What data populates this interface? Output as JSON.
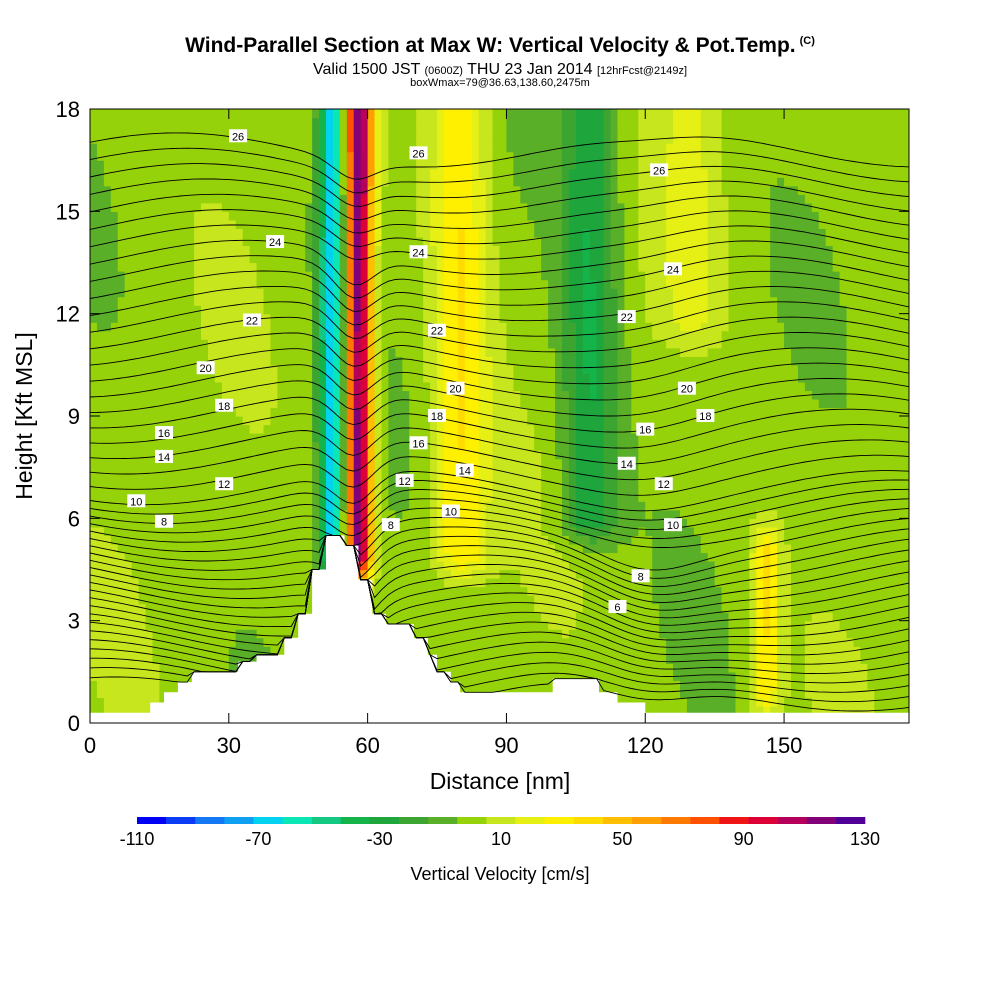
{
  "header": {
    "title": "Wind-Parallel Section at Max W: Vertical Velocity & Pot.Temp.",
    "title_unit": "(C)",
    "subtitle_valid": "Valid 1500 JST",
    "subtitle_z": "(0600Z)",
    "subtitle_date": "THU 23 Jan 2014",
    "subtitle_fcst": "[12hrFcst@2149z]",
    "subtitle_box": "boxWmax=79@36.63,138.60,2475m"
  },
  "chart_data": {
    "type": "heatmap",
    "title": "Wind-Parallel Section at Max W: Vertical Velocity & Pot.Temp. (C)",
    "xlabel": "Distance [nm]",
    "ylabel": "Height [Kft MSL]",
    "xlim": [
      0,
      177
    ],
    "ylim": [
      0,
      18
    ],
    "x_ticks": [
      0,
      30,
      60,
      90,
      120,
      150
    ],
    "y_ticks": [
      0,
      3,
      6,
      9,
      12,
      15,
      18
    ],
    "colorbar": {
      "label": "Vertical Velocity [cm/s]",
      "min": -110,
      "max": 130,
      "step": 10,
      "tick_labels": [
        -110,
        -70,
        -30,
        10,
        50,
        90,
        130
      ],
      "colors": [
        "#0000f5",
        "#0a3cf5",
        "#1478f5",
        "#10a0f2",
        "#00d2f0",
        "#0ae6b4",
        "#14c882",
        "#14b44b",
        "#1ea53c",
        "#3ca532",
        "#5aaf28",
        "#96d20a",
        "#c8e61e",
        "#e6f014",
        "#fff000",
        "#ffdc00",
        "#ffbe00",
        "#ffa000",
        "#ff7800",
        "#ff5000",
        "#f01414",
        "#dc0037",
        "#b4005a",
        "#820078",
        "#500096"
      ]
    },
    "vertical_velocity_features": [
      {
        "name": "strong updraft",
        "x_center": 58,
        "x_width": 3,
        "z_range": [
          5,
          18
        ],
        "value": 130
      },
      {
        "name": "strong downdraft",
        "x_center": 52.5,
        "x_width": 3,
        "z_range": [
          5,
          18
        ],
        "value": -70
      },
      {
        "name": "updraft band",
        "x_center": 80,
        "x_width": 6,
        "z_range": [
          5,
          18
        ],
        "value": 40
      },
      {
        "name": "downdraft band",
        "x_center": 108,
        "x_width": 6,
        "z_range": [
          6,
          18
        ],
        "value": -30
      },
      {
        "name": "updraft band",
        "x_center": 130,
        "x_width": 7,
        "z_range": [
          12,
          18
        ],
        "value": 20
      },
      {
        "name": "low-level updraft",
        "x_center": 146,
        "x_width": 3,
        "z_range": [
          1,
          5
        ],
        "value": 40
      }
    ],
    "terrain_steps": [
      [
        0,
        0.3
      ],
      [
        13,
        0.3
      ],
      [
        13,
        0.6
      ],
      [
        16,
        0.6
      ],
      [
        16,
        0.9
      ],
      [
        19,
        0.9
      ],
      [
        19,
        1.2
      ],
      [
        22,
        1.2
      ],
      [
        22,
        1.5
      ],
      [
        32,
        1.5
      ],
      [
        32,
        1.8
      ],
      [
        36,
        1.8
      ],
      [
        36,
        2.0
      ],
      [
        42,
        2.0
      ],
      [
        42,
        2.5
      ],
      [
        45,
        2.5
      ],
      [
        45,
        3.2
      ],
      [
        48,
        3.2
      ],
      [
        48,
        4.5
      ],
      [
        51,
        4.5
      ],
      [
        51,
        5.5
      ],
      [
        55,
        5.5
      ],
      [
        55,
        5.2
      ],
      [
        58,
        5.2
      ],
      [
        58,
        4.2
      ],
      [
        61,
        4.2
      ],
      [
        61,
        3.2
      ],
      [
        64,
        3.2
      ],
      [
        64,
        2.9
      ],
      [
        70,
        2.9
      ],
      [
        70,
        2.5
      ],
      [
        73,
        2.5
      ],
      [
        73,
        2.0
      ],
      [
        75,
        2.0
      ],
      [
        75,
        1.5
      ],
      [
        78,
        1.5
      ],
      [
        78,
        1.2
      ],
      [
        80,
        1.2
      ],
      [
        80,
        0.9
      ],
      [
        100,
        0.9
      ],
      [
        100,
        1.3
      ],
      [
        110,
        1.3
      ],
      [
        110,
        0.9
      ],
      [
        114,
        0.9
      ],
      [
        114,
        0.6
      ],
      [
        120,
        0.6
      ],
      [
        120,
        0.3
      ],
      [
        177,
        0.3
      ]
    ],
    "potential_temperature_contours": {
      "interval": 0.5,
      "labeled_values": [
        6,
        8,
        10,
        12,
        14,
        16,
        18,
        20,
        22,
        24,
        26
      ],
      "labels": [
        {
          "value": "26",
          "x": 32,
          "z": 17.2
        },
        {
          "value": "26",
          "x": 71,
          "z": 16.7
        },
        {
          "value": "26",
          "x": 123,
          "z": 16.2
        },
        {
          "value": "24",
          "x": 40,
          "z": 14.1
        },
        {
          "value": "24",
          "x": 71,
          "z": 13.8
        },
        {
          "value": "24",
          "x": 126,
          "z": 13.3
        },
        {
          "value": "22",
          "x": 35,
          "z": 11.8
        },
        {
          "value": "22",
          "x": 75,
          "z": 11.5
        },
        {
          "value": "22",
          "x": 116,
          "z": 11.9
        },
        {
          "value": "20",
          "x": 25,
          "z": 10.4
        },
        {
          "value": "20",
          "x": 79,
          "z": 9.8
        },
        {
          "value": "20",
          "x": 129,
          "z": 9.8
        },
        {
          "value": "18",
          "x": 29,
          "z": 9.3
        },
        {
          "value": "18",
          "x": 75,
          "z": 9.0
        },
        {
          "value": "18",
          "x": 133,
          "z": 9.0
        },
        {
          "value": "16",
          "x": 16,
          "z": 8.5
        },
        {
          "value": "16",
          "x": 71,
          "z": 8.2
        },
        {
          "value": "16",
          "x": 120,
          "z": 8.6
        },
        {
          "value": "14",
          "x": 16,
          "z": 7.8
        },
        {
          "value": "14",
          "x": 81,
          "z": 7.4
        },
        {
          "value": "14",
          "x": 116,
          "z": 7.6
        },
        {
          "value": "12",
          "x": 29,
          "z": 7.0
        },
        {
          "value": "12",
          "x": 68,
          "z": 7.1
        },
        {
          "value": "12",
          "x": 124,
          "z": 7.0
        },
        {
          "value": "10",
          "x": 10,
          "z": 6.5
        },
        {
          "value": "10",
          "x": 78,
          "z": 6.2
        },
        {
          "value": "10",
          "x": 126,
          "z": 5.8
        },
        {
          "value": "8",
          "x": 16,
          "z": 5.9
        },
        {
          "value": "8",
          "x": 65,
          "z": 5.8
        },
        {
          "value": "8",
          "x": 119,
          "z": 4.3
        },
        {
          "value": "6",
          "x": 114,
          "z": 3.4
        }
      ]
    }
  }
}
